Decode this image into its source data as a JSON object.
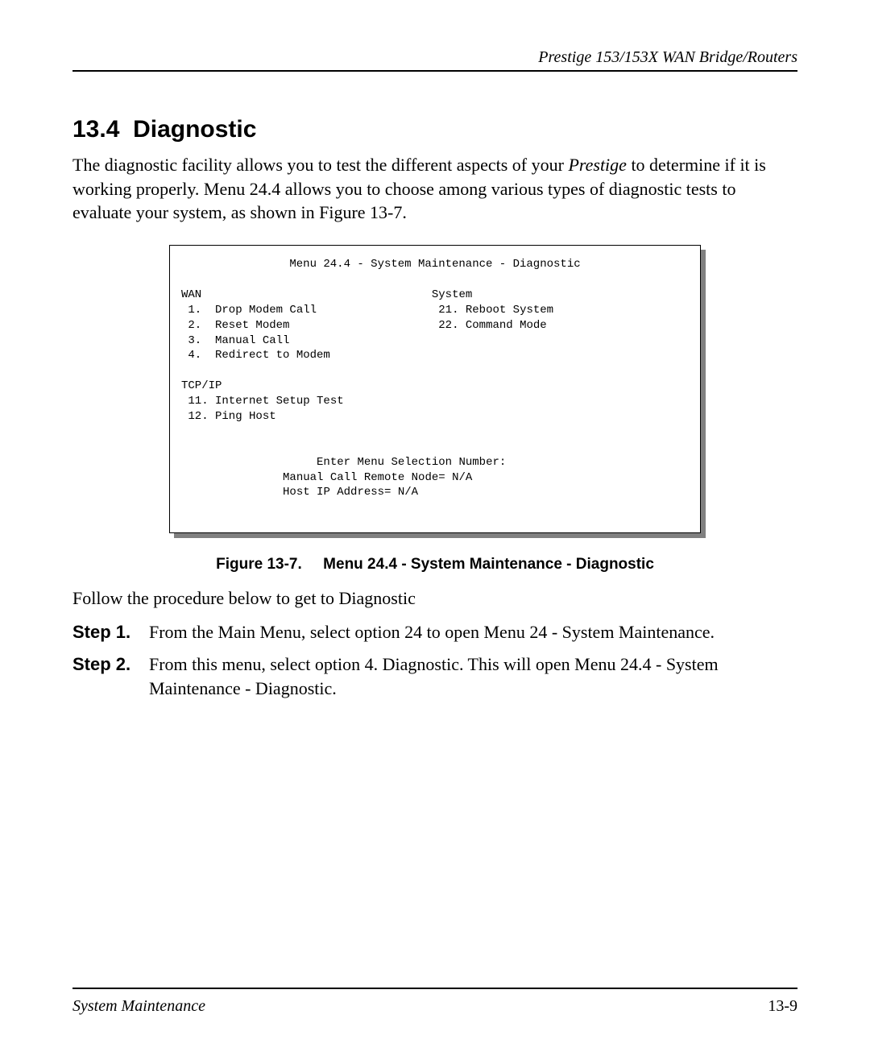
{
  "header": {
    "text": "Prestige 153/153X  WAN Bridge/Routers"
  },
  "section": {
    "number": "13.4",
    "title": "Diagnostic"
  },
  "intro": {
    "part1": "The diagnostic facility allows you to test the different aspects of your ",
    "emph": "Prestige",
    "part2": " to determine if it is working properly. Menu 24.4 allows you to choose among various types of diagnostic tests to evaluate your system, as shown in Figure 13-7."
  },
  "terminal": {
    "title": "Menu 24.4 - System Maintenance - Diagnostic",
    "left_heading": "WAN",
    "right_heading": "System",
    "wan_items": [
      " 1.  Drop Modem Call",
      " 2.  Reset Modem",
      " 3.  Manual Call",
      " 4.  Redirect to Modem"
    ],
    "system_items": [
      " 21. Reboot System",
      " 22. Command Mode"
    ],
    "tcp_heading": "TCP/IP",
    "tcp_items": [
      " 11. Internet Setup Test",
      " 12. Ping Host"
    ],
    "prompt1": "Enter Menu Selection Number:",
    "prompt2": "Manual Call Remote Node= N/A",
    "prompt3": "Host IP Address= N/A"
  },
  "figure": {
    "label": "Figure 13-7.",
    "caption": "Menu 24.4 - System Maintenance - Diagnostic"
  },
  "follow_text": "Follow the procedure below to get to Diagnostic",
  "steps": [
    {
      "label": "Step 1.",
      "text": "From the Main Menu, select option 24 to open Menu 24 - System Maintenance."
    },
    {
      "label": "Step 2.",
      "text": "From this menu, select option 4. Diagnostic. This will open Menu 24.4 - System Maintenance - Diagnostic."
    }
  ],
  "footer": {
    "left": "System Maintenance",
    "right": "13-9"
  }
}
